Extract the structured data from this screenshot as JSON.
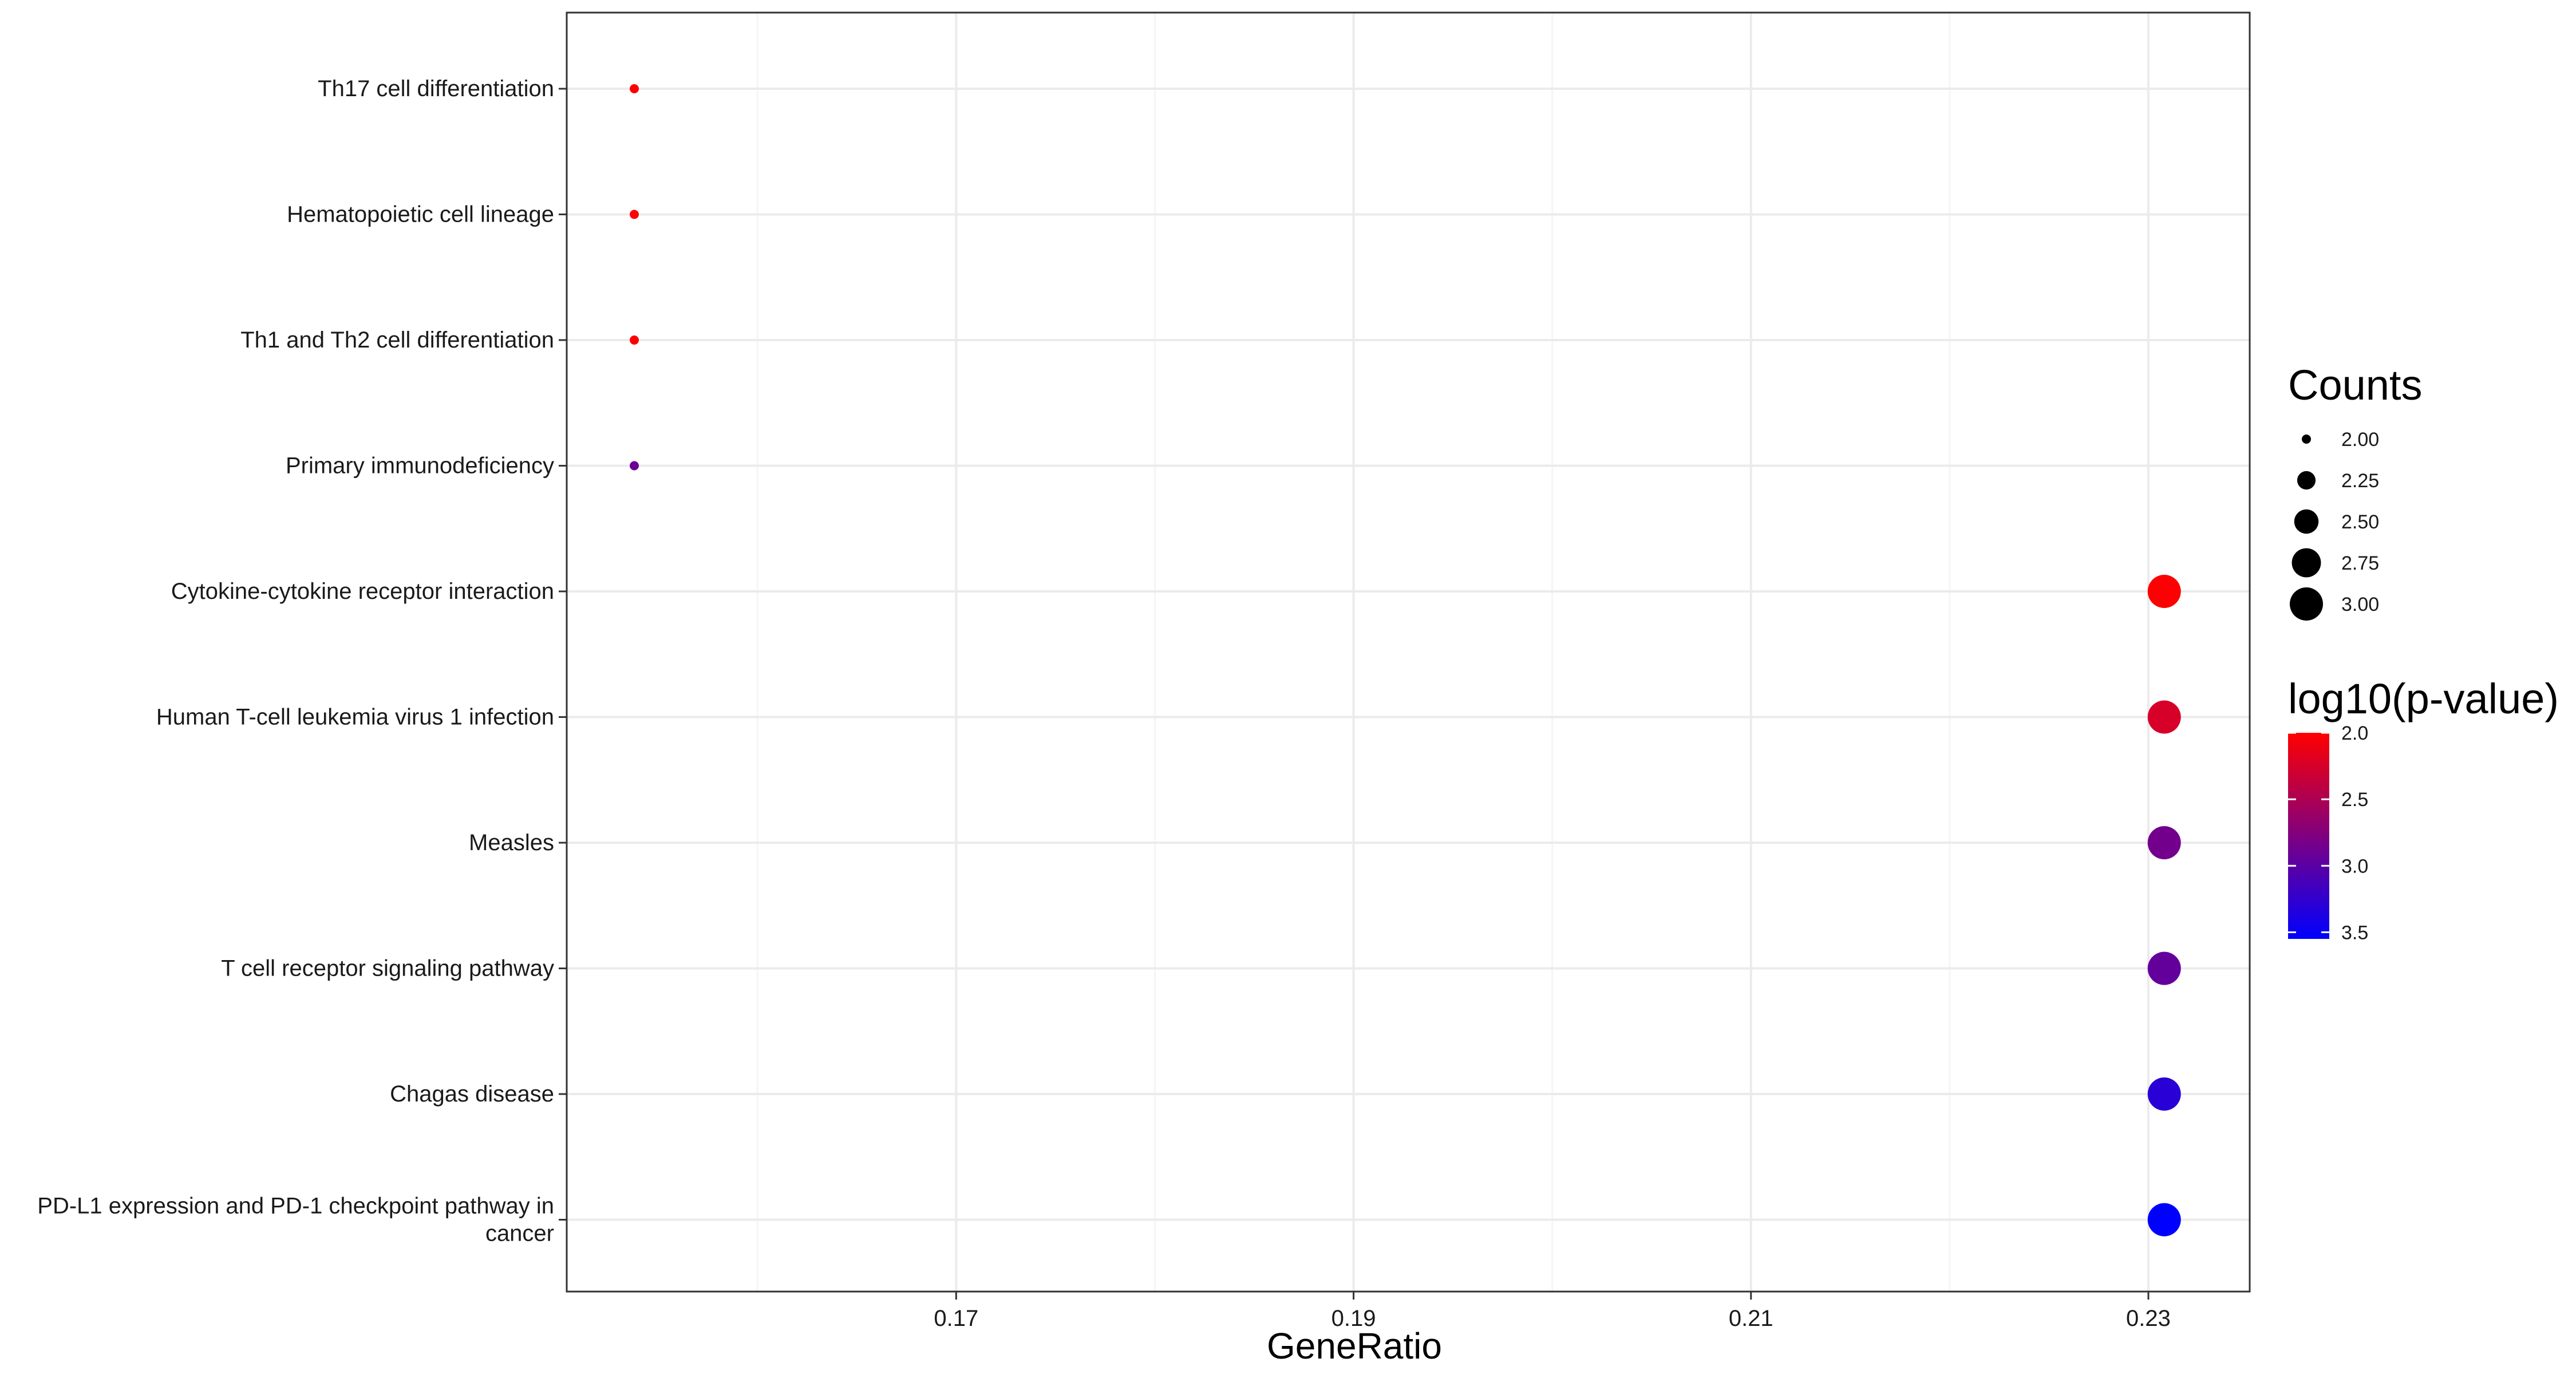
{
  "chart_data": {
    "type": "scatter",
    "xlabel": "GeneRatio",
    "ylabel": "",
    "xlim": [
      0.1504,
      0.2351
    ],
    "x_ticks": [
      0.17,
      0.19,
      0.21,
      0.23
    ],
    "x_tick_labels": [
      "0.17",
      "0.19",
      "0.21",
      "0.23"
    ],
    "grid": true,
    "categories": [
      "Th17 cell differentiation",
      "Hematopoietic cell lineage",
      "Th1 and Th2 cell differentiation",
      "Primary immunodeficiency",
      "Cytokine-cytokine receptor interaction",
      "Human T-cell leukemia virus 1 infection",
      "Measles",
      "T cell receptor signaling pathway",
      "Chagas disease",
      "PD-L1 expression and PD-1 checkpoint pathway in cancer"
    ],
    "category_lines": [
      [
        "Th17 cell differentiation"
      ],
      [
        "Hematopoietic cell lineage"
      ],
      [
        "Th1 and Th2 cell differentiation"
      ],
      [
        "Primary immunodeficiency"
      ],
      [
        "Cytokine-cytokine receptor interaction"
      ],
      [
        "Human T-cell leukemia virus 1 infection"
      ],
      [
        "Measles"
      ],
      [
        "T cell receptor signaling pathway"
      ],
      [
        "Chagas disease"
      ],
      [
        "PD-L1 expression and PD-1 checkpoint pathway in",
        "cancer"
      ]
    ],
    "points": [
      {
        "category": "Th17 cell differentiation",
        "gene_ratio": 0.1538,
        "count": 2,
        "log10_pvalue": 2.0
      },
      {
        "category": "Hematopoietic cell lineage",
        "gene_ratio": 0.1538,
        "count": 2,
        "log10_pvalue": 2.02
      },
      {
        "category": "Th1 and Th2 cell differentiation",
        "gene_ratio": 0.1538,
        "count": 2,
        "log10_pvalue": 2.03
      },
      {
        "category": "Primary immunodeficiency",
        "gene_ratio": 0.1538,
        "count": 2,
        "log10_pvalue": 2.9
      },
      {
        "category": "Cytokine-cytokine receptor interaction",
        "gene_ratio": 0.2308,
        "count": 3,
        "log10_pvalue": 2.02
      },
      {
        "category": "Human T-cell leukemia virus 1 infection",
        "gene_ratio": 0.2308,
        "count": 3,
        "log10_pvalue": 2.25
      },
      {
        "category": "Measles",
        "gene_ratio": 0.2308,
        "count": 3,
        "log10_pvalue": 2.85
      },
      {
        "category": "T cell receptor signaling pathway",
        "gene_ratio": 0.2308,
        "count": 3,
        "log10_pvalue": 2.95
      },
      {
        "category": "Chagas disease",
        "gene_ratio": 0.2308,
        "count": 3,
        "log10_pvalue": 3.3
      },
      {
        "category": "PD-L1 expression and PD-1 checkpoint pathway in cancer",
        "gene_ratio": 0.2308,
        "count": 3,
        "log10_pvalue": 3.55
      }
    ],
    "size_legend": {
      "title": "Counts",
      "breaks": [
        2.0,
        2.25,
        2.5,
        2.75,
        3.0
      ],
      "labels": [
        "2.00",
        "2.25",
        "2.50",
        "2.75",
        "3.00"
      ]
    },
    "color_legend": {
      "title": "log10(p-value)",
      "breaks": [
        2.0,
        2.5,
        3.0,
        3.5
      ],
      "labels": [
        "2.0",
        "2.5",
        "3.0",
        "3.5"
      ],
      "range": [
        2.0,
        3.55
      ],
      "low_color": "#ff0000",
      "high_color": "#0000ff"
    },
    "colors": {
      "panel_border": "#333333",
      "grid_major": "#ebebeb",
      "grid_minor": "#f5f5f5",
      "point_scale_low": "#ff0000",
      "point_scale_high": "#0000ff"
    }
  }
}
